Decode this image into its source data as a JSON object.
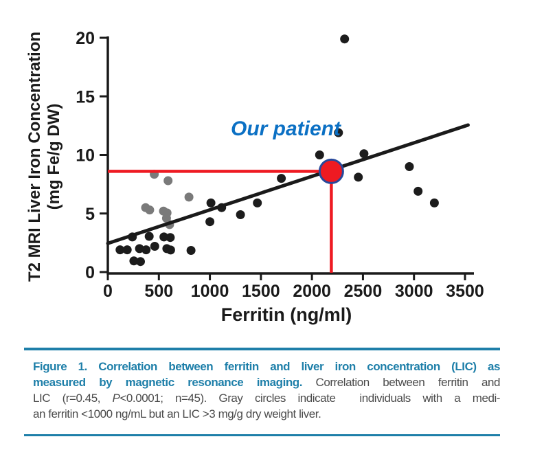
{
  "chart_data": {
    "type": "scatter",
    "xlabel": "Ferritin (ng/ml)",
    "ylabel_line1": "T2 MRI Liver Iron Concentration",
    "ylabel_line2": "(mg Fe/g DW)",
    "xlim": [
      0,
      3500
    ],
    "ylim": [
      0,
      20
    ],
    "x_ticks": [
      0,
      500,
      1000,
      1500,
      2000,
      2500,
      3000,
      3500
    ],
    "y_ticks": [
      0,
      5,
      10,
      15,
      20
    ],
    "grid": false,
    "legend": "none",
    "series": [
      {
        "name": "gray-individuals",
        "description": "Gray circles: median ferritin <1000 ng/mL but LIC >3 mg/g dry weight liver",
        "color": "#7a7a7a",
        "points": [
          [
            455,
            8.35
          ],
          [
            590,
            7.8
          ],
          [
            795,
            6.4
          ],
          [
            370,
            5.5
          ],
          [
            410,
            5.3
          ],
          [
            545,
            5.2
          ],
          [
            580,
            5.05
          ],
          [
            575,
            4.6
          ],
          [
            605,
            4.05
          ]
        ]
      },
      {
        "name": "black-patients",
        "description": "Black circles: individual patients",
        "color": "#1c1c1c",
        "points": [
          [
            120,
            1.9
          ],
          [
            190,
            1.9
          ],
          [
            240,
            3.0
          ],
          [
            310,
            2.0
          ],
          [
            375,
            1.9
          ],
          [
            405,
            3.05
          ],
          [
            460,
            2.2
          ],
          [
            255,
            0.95
          ],
          [
            320,
            0.9
          ],
          [
            550,
            3.0
          ],
          [
            612,
            2.95
          ],
          [
            578,
            2.0
          ],
          [
            615,
            1.88
          ],
          [
            815,
            1.85
          ],
          [
            1000,
            4.3
          ],
          [
            1010,
            5.9
          ],
          [
            1115,
            5.5
          ],
          [
            1300,
            4.9
          ],
          [
            1465,
            5.9
          ],
          [
            1700,
            8.0
          ],
          [
            2075,
            10.0
          ],
          [
            2260,
            11.9
          ],
          [
            2320,
            19.9
          ],
          [
            2455,
            8.1
          ],
          [
            2510,
            10.1
          ],
          [
            2955,
            9.0
          ],
          [
            3040,
            6.9
          ],
          [
            3200,
            5.9
          ]
        ]
      }
    ],
    "trendline": {
      "x1": 0,
      "y1": 2.45,
      "x2": 3530,
      "y2": 12.55,
      "color": "#1a1a1a"
    },
    "patient_marker": {
      "x": 2190,
      "y": 8.6,
      "label": "Our patient",
      "label_color": "#0b70c4",
      "fill": "#ee1a22",
      "stroke": "#27489b"
    },
    "crosshair_color": "#ee1a22",
    "stats": {
      "r": "0.45",
      "p": "<0.0001",
      "n": "45"
    }
  },
  "caption": {
    "accent_color": "#1e7fa9",
    "text_color": "#4b4b4b",
    "lines": [
      [
        {
          "t": "Figure 1. Correlation between ferritin and liver iron concentration (LIC) as",
          "s": "b"
        }
      ],
      [
        {
          "t": "measured by magnetic resonance imaging.",
          "s": "b"
        },
        {
          "t": " Correlation between ferritin and",
          "s": "n"
        }
      ],
      [
        {
          "t": "LIC (r=0.45, ",
          "s": "n"
        },
        {
          "t": "P",
          "s": "i"
        },
        {
          "t": "<0.0001; n=45). Gray circles indicate  individuals with a medi-",
          "s": "n"
        }
      ],
      [
        {
          "t": "an ferritin <1000 ng/mL but an LIC >3 mg/g dry weight liver.",
          "s": "n"
        }
      ]
    ]
  }
}
